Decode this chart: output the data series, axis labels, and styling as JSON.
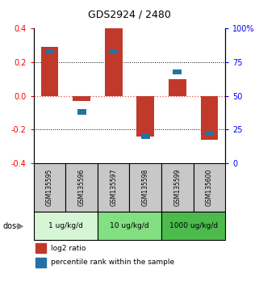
{
  "title": "GDS2924 / 2480",
  "samples": [
    "GSM135595",
    "GSM135596",
    "GSM135597",
    "GSM135598",
    "GSM135599",
    "GSM135600"
  ],
  "log2_ratio": [
    0.29,
    -0.03,
    0.4,
    -0.24,
    0.1,
    -0.26
  ],
  "percentile_rank": [
    83,
    38,
    83,
    20,
    68,
    22
  ],
  "ylim_left": [
    -0.4,
    0.4
  ],
  "ylim_right": [
    0,
    100
  ],
  "left_ticks": [
    -0.4,
    -0.2,
    0.0,
    0.2,
    0.4
  ],
  "right_ticks": [
    0,
    25,
    50,
    75,
    100
  ],
  "right_tick_labels": [
    "0",
    "25",
    "50",
    "75",
    "100%"
  ],
  "bar_color": "#c0392b",
  "square_color": "#2471a3",
  "dose_groups": [
    {
      "label": "1 ug/kg/d",
      "samples": [
        "GSM135595",
        "GSM135596"
      ],
      "color": "#d5f5d5"
    },
    {
      "label": "10 ug/kg/d",
      "samples": [
        "GSM135597",
        "GSM135598"
      ],
      "color": "#82e082"
    },
    {
      "label": "1000 ug/kg/d",
      "samples": [
        "GSM135599",
        "GSM135600"
      ],
      "color": "#4cbb4c"
    }
  ],
  "sample_box_color": "#c8c8c8",
  "legend_red_label": "log2 ratio",
  "legend_blue_label": "percentile rank within the sample",
  "dose_label": "dose",
  "zero_line_color": "#e74c3c",
  "bar_width": 0.55
}
